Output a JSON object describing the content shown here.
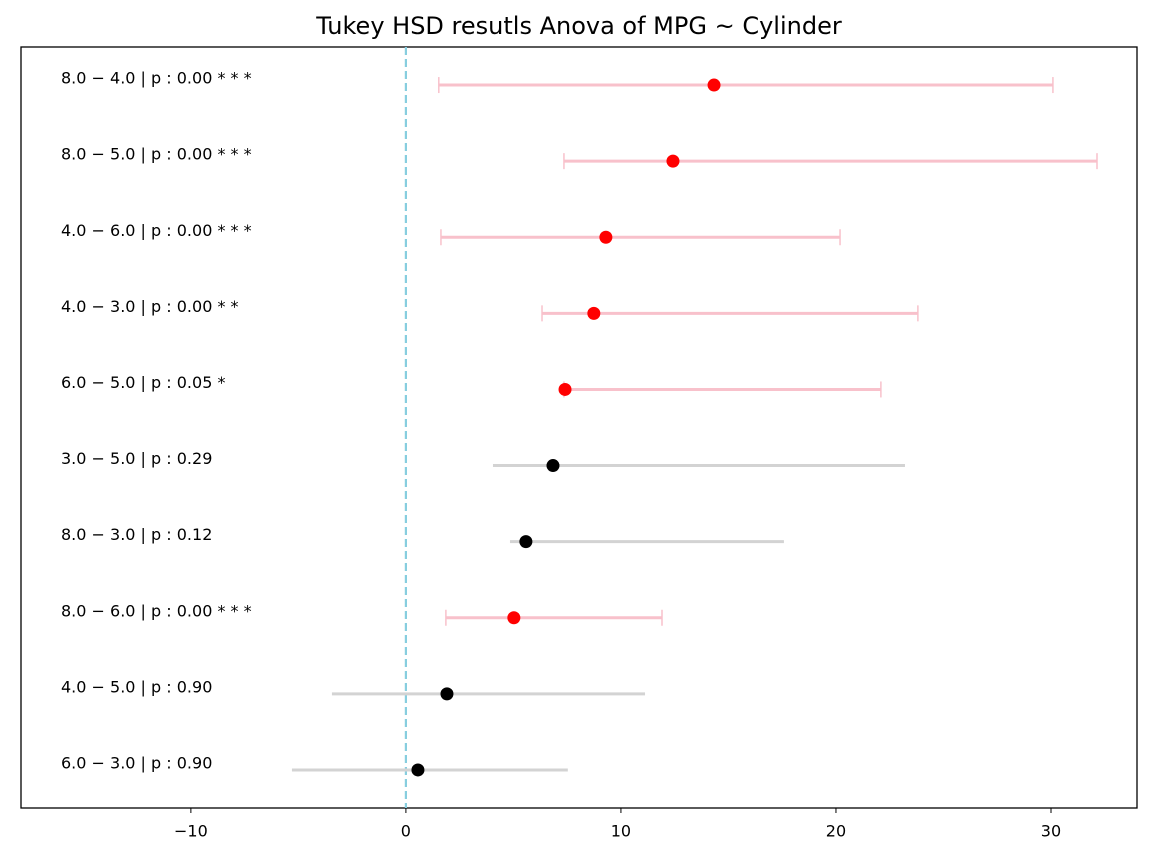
{
  "chart_data": {
    "type": "errorbar",
    "orientation": "horizontal",
    "title": "Tukey HSD resutls Anova of MPG ~ Cylinder",
    "categories": [
      "8.0 − 4.0 | p : 0.00 * * *",
      "8.0 − 5.0 | p : 0.00 * * *",
      "4.0 − 6.0 | p : 0.00 * * *",
      "4.0 − 3.0 | p : 0.00 * *",
      "6.0 − 5.0 | p : 0.05 *",
      "3.0 − 5.0 | p : 0.29",
      "8.0 − 3.0 | p : 0.12",
      "8.0 − 6.0 | p : 0.00 * * *",
      "4.0 − 5.0 | p : 0.90",
      "6.0 − 3.0 | p : 0.90"
    ],
    "values": [
      14.33,
      12.42,
      9.3,
      8.74,
      7.4,
      6.84,
      5.58,
      5.02,
      1.91,
      0.56
    ],
    "lower": [
      1.53,
      7.35,
      1.63,
      6.33,
      7.35,
      4.05,
      4.84,
      1.86,
      -3.44,
      -5.3
    ],
    "upper": [
      30.09,
      32.14,
      20.19,
      23.81,
      22.09,
      23.21,
      17.58,
      11.91,
      11.12,
      7.53
    ],
    "marker_colors": [
      "#ff0000",
      "#ff0000",
      "#ff0000",
      "#ff0000",
      "#ff0000",
      "#000000",
      "#000000",
      "#ff0000",
      "#000000",
      "#000000"
    ],
    "bar_colors": [
      "#f8c1cb",
      "#f8c1cb",
      "#f8c1cb",
      "#f8c1cb",
      "#f8c1cb",
      "#d3d3d3",
      "#d3d3d3",
      "#f8c1cb",
      "#d3d3d3",
      "#d3d3d3"
    ],
    "caps": [
      true,
      true,
      true,
      true,
      true,
      false,
      false,
      true,
      false,
      false
    ],
    "reference_line": 0,
    "reference_color": "#87cedf",
    "xlim": [
      -17.9,
      34.0
    ],
    "xticks": [
      {
        "value": -10,
        "label": "−10"
      },
      0,
      10,
      20,
      30
    ]
  }
}
